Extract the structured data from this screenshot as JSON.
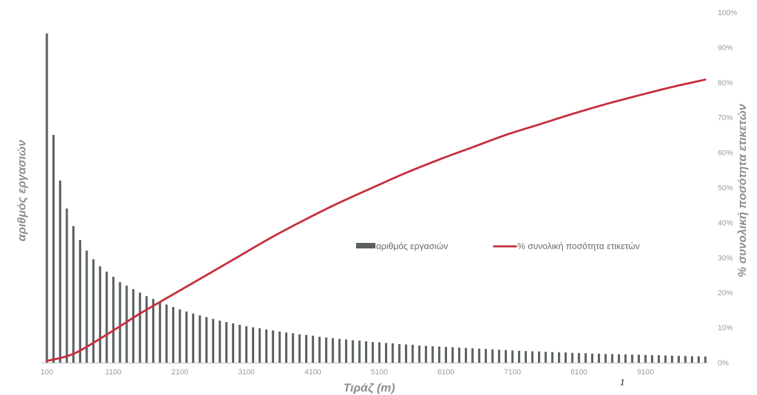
{
  "footnote": "1",
  "chart_data": {
    "type": "bar",
    "title": "",
    "xlabel": "Τιράζ (m)",
    "ylabel_left": "αριθμός εργασιών",
    "ylabel_right": "% συνολική ποσότητα ετικετών",
    "x_ticks": [
      "100",
      "1100",
      "2100",
      "3100",
      "4100",
      "5100",
      "6100",
      "7100",
      "8100",
      "9100"
    ],
    "y_right_ticks": [
      "0%",
      "10%",
      "20%",
      "30%",
      "40%",
      "50%",
      "60%",
      "70%",
      "80%",
      "90%",
      "100%"
    ],
    "xlim": [
      100,
      10000
    ],
    "y_left_lim": [
      0,
      100
    ],
    "y_right_lim": [
      0,
      100
    ],
    "grid": false,
    "legend_position": "center-right",
    "colors": {
      "bars": "#5a5f60",
      "line": "#c63040",
      "axis": "#bbbbbb",
      "tick_text": "#9a9a9a"
    },
    "series": [
      {
        "name": "αριθμός εργασιών",
        "type": "bar",
        "axis": "left",
        "x": [
          100,
          200,
          300,
          400,
          500,
          600,
          700,
          800,
          900,
          1000,
          1100,
          1200,
          1300,
          1400,
          1500,
          1600,
          1700,
          1800,
          1900,
          2000,
          2100,
          2200,
          2300,
          2400,
          2500,
          2600,
          2700,
          2800,
          2900,
          3000,
          3100,
          3200,
          3300,
          3400,
          3500,
          3600,
          3700,
          3800,
          3900,
          4000,
          4100,
          4200,
          4300,
          4400,
          4500,
          4600,
          4700,
          4800,
          4900,
          5000,
          5100,
          5200,
          5300,
          5400,
          5500,
          5600,
          5700,
          5800,
          5900,
          6000,
          6100,
          6200,
          6300,
          6400,
          6500,
          6600,
          6700,
          6800,
          6900,
          7000,
          7100,
          7200,
          7300,
          7400,
          7500,
          7600,
          7700,
          7800,
          7900,
          8000,
          8100,
          8200,
          8300,
          8400,
          8500,
          8600,
          8700,
          8800,
          8900,
          9000,
          9100,
          9200,
          9300,
          9400,
          9500,
          9600,
          9700,
          9800,
          9900,
          10000
        ],
        "values": [
          94,
          65,
          52,
          44,
          39,
          35,
          32,
          29.5,
          27.5,
          26,
          24.5,
          23,
          22,
          21,
          20,
          19,
          18.2,
          17.3,
          16.6,
          15.9,
          15.2,
          14.6,
          14,
          13.5,
          13,
          12.5,
          12,
          11.6,
          11.2,
          10.8,
          10.4,
          10.1,
          9.8,
          9.5,
          9.2,
          8.9,
          8.6,
          8.4,
          8.1,
          7.9,
          7.7,
          7.4,
          7.2,
          7,
          6.8,
          6.6,
          6.4,
          6.3,
          6.1,
          5.9,
          5.8,
          5.6,
          5.5,
          5.3,
          5.2,
          5.1,
          4.9,
          4.8,
          4.7,
          4.6,
          4.5,
          4.4,
          4.3,
          4.2,
          4.1,
          4,
          3.9,
          3.8,
          3.7,
          3.6,
          3.5,
          3.4,
          3.3,
          3.25,
          3.2,
          3.1,
          3,
          2.95,
          2.9,
          2.8,
          2.75,
          2.7,
          2.6,
          2.55,
          2.5,
          2.45,
          2.4,
          2.35,
          2.3,
          2.25,
          2.2,
          2.15,
          2.1,
          2.05,
          2,
          1.95,
          1.9,
          1.85,
          1.8,
          1.75
        ]
      },
      {
        "name": "% συνολική ποσότητα ετικετών",
        "type": "line",
        "axis": "right",
        "x": [
          100,
          500,
          1000,
          1500,
          2000,
          2500,
          3000,
          3500,
          4000,
          4500,
          5000,
          5500,
          6000,
          6500,
          7000,
          7500,
          8000,
          8500,
          9000,
          9500,
          10000
        ],
        "values": [
          0.5,
          2.5,
          8,
          14,
          19.5,
          25,
          30.5,
          36,
          41,
          45.7,
          50,
          54.2,
          58,
          61.5,
          65,
          68,
          71,
          73.8,
          76.3,
          78.7,
          80.8
        ]
      }
    ]
  }
}
